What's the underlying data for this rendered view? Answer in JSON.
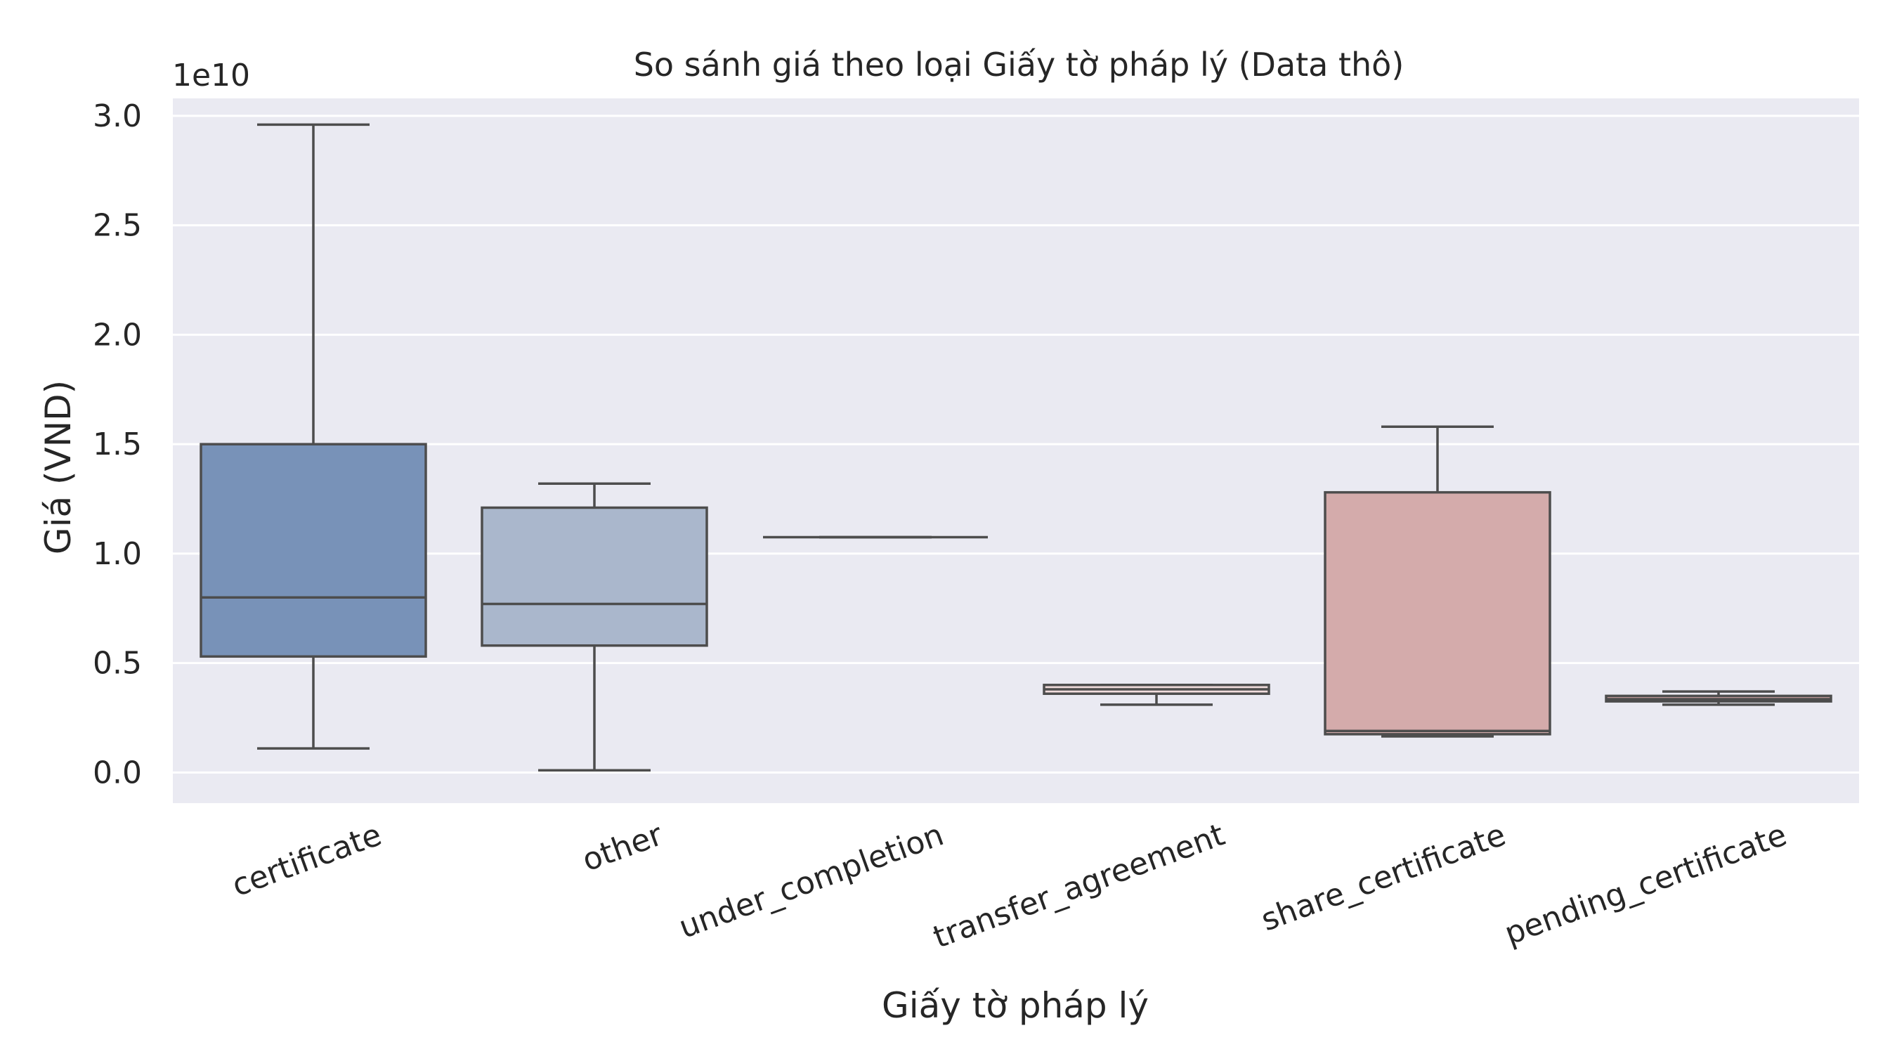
{
  "chart_data": {
    "type": "box",
    "title": "So sánh giá theo loại Giấy tờ pháp lý (Data thô)",
    "xlabel": "Giấy tờ pháp lý",
    "ylabel": "Giá (VND)",
    "y_offset_label": "1e10",
    "y_scale": 10000000000.0,
    "ylim": [
      -0.14,
      3.08
    ],
    "yticks": [
      0.0,
      0.5,
      1.0,
      1.5,
      2.0,
      2.5,
      3.0
    ],
    "ytick_labels": [
      "0.0",
      "0.5",
      "1.0",
      "1.5",
      "2.0",
      "2.5",
      "3.0"
    ],
    "grid": true,
    "categories": [
      "certificate",
      "other",
      "under_completion",
      "transfer_agreement",
      "share_certificate",
      "pending_certificate"
    ],
    "colors": [
      "#7892b8",
      "#aab7cc",
      "#d8d8d8",
      "#f0dcdc",
      "#d4abab",
      "#c8a0a0"
    ],
    "boxes": [
      {
        "category": "certificate",
        "whisker_low": 0.11,
        "q1": 0.53,
        "median": 0.8,
        "q3": 1.5,
        "whisker_high": 2.96
      },
      {
        "category": "other",
        "whisker_low": 0.01,
        "q1": 0.58,
        "median": 0.77,
        "q3": 1.21,
        "whisker_high": 1.32
      },
      {
        "category": "under_completion",
        "whisker_low": 1.075,
        "q1": 1.075,
        "median": 1.075,
        "q3": 1.075,
        "whisker_high": 1.075
      },
      {
        "category": "transfer_agreement",
        "whisker_low": 0.31,
        "q1": 0.36,
        "median": 0.38,
        "q3": 0.4,
        "whisker_high": 0.4
      },
      {
        "category": "share_certificate",
        "whisker_low": 0.165,
        "q1": 0.175,
        "median": 0.19,
        "q3": 1.28,
        "whisker_high": 1.58
      },
      {
        "category": "pending_certificate",
        "whisker_low": 0.31,
        "q1": 0.325,
        "median": 0.335,
        "q3": 0.35,
        "whisker_high": 0.37
      }
    ]
  }
}
